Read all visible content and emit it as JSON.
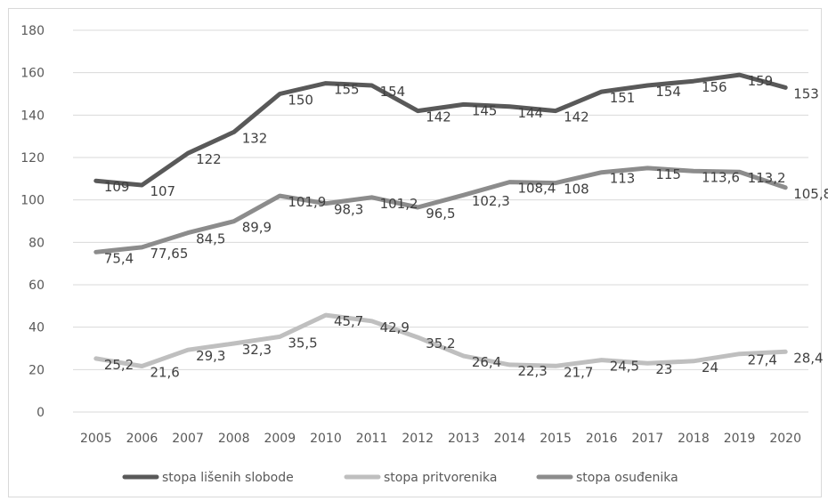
{
  "chart_data": {
    "type": "line",
    "title": "",
    "xlabel": "",
    "ylabel": "",
    "categories": [
      "2005",
      "2006",
      "2007",
      "2008",
      "2009",
      "2010",
      "2011",
      "2012",
      "2013",
      "2014",
      "2015",
      "2016",
      "2017",
      "2018",
      "2019",
      "2020"
    ],
    "ylim": [
      0,
      180
    ],
    "yticks": [
      0,
      20,
      40,
      60,
      80,
      100,
      120,
      140,
      160,
      180
    ],
    "grid": true,
    "legend_position": "bottom",
    "series": [
      {
        "name": "stopa lišenih slobode",
        "color": "#595959",
        "values": [
          109,
          107,
          122,
          132,
          150,
          155,
          154,
          142,
          145,
          144,
          142,
          151,
          154,
          156,
          159,
          153
        ],
        "labels": [
          "109",
          "107",
          "122",
          "132",
          "150",
          "155",
          "154",
          "142",
          "145",
          "144",
          "142",
          "151",
          "154",
          "156",
          "159",
          "153"
        ]
      },
      {
        "name": "stopa pritvorenika",
        "color": "#bfbfbf",
        "values": [
          25.2,
          21.6,
          29.3,
          32.3,
          35.5,
          45.7,
          42.9,
          35.2,
          26.4,
          22.3,
          21.7,
          24.5,
          23,
          24,
          27.4,
          28.4
        ],
        "labels": [
          "25,2",
          "21,6",
          "29,3",
          "32,3",
          "35,5",
          "45,7",
          "42,9",
          "35,2",
          "26,4",
          "22,3",
          "21,7",
          "24,5",
          "23",
          "24",
          "27,4",
          "28,4"
        ]
      },
      {
        "name": "stopa osuđenika",
        "color": "#8c8c8c",
        "values": [
          75.4,
          77.65,
          84.5,
          89.9,
          101.9,
          98.3,
          101.2,
          96.5,
          102.3,
          108.4,
          108,
          113,
          115,
          113.6,
          113.2,
          105.8
        ],
        "labels": [
          "75,4",
          "77,65",
          "84,5",
          "89,9",
          "101,9",
          "98,3",
          "101,2",
          "96,5",
          "102,3",
          "108,4",
          "108",
          "113",
          "115",
          "113,6",
          "113,2",
          "105,8"
        ]
      }
    ]
  }
}
